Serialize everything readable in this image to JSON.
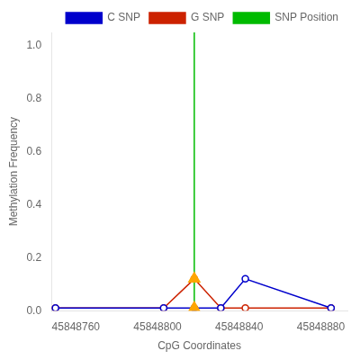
{
  "chart_data": {
    "type": "line",
    "xlabel": "CpG Coordinates",
    "ylabel": "Methylation Frequency",
    "xlim": [
      45848748,
      45848893
    ],
    "ylim": [
      0.0,
      1.05
    ],
    "xticks": [
      45848760,
      45848800,
      45848840,
      45848880
    ],
    "yticks": [
      {
        "value": 0.0,
        "label": "0.0"
      },
      {
        "value": 0.2,
        "label": "0.2"
      },
      {
        "value": 0.4,
        "label": "0.4"
      },
      {
        "value": 0.6,
        "label": "0.6"
      },
      {
        "value": 0.8,
        "label": "0.8"
      },
      {
        "value": 1.0,
        "label": "1.0"
      }
    ],
    "grid": false,
    "legend": "upper right",
    "series": [
      {
        "name": "C SNP",
        "type": "line",
        "color": "#0000cc",
        "marker": "circle",
        "x": [
          45848750,
          45848803,
          45848818,
          45848831,
          45848843,
          45848885
        ],
        "values": [
          0.01,
          0.01,
          0.01,
          0.01,
          0.12,
          0.01
        ]
      },
      {
        "name": "G SNP",
        "type": "line",
        "color": "#cc2200",
        "marker": "circle",
        "x": [
          45848750,
          45848803,
          45848818,
          45848831,
          45848843,
          45848885
        ],
        "values": [
          0.01,
          0.01,
          0.12,
          0.01,
          0.01,
          0.01
        ]
      },
      {
        "name": "SNP Position",
        "type": "vline",
        "color": "#00bb00",
        "x": [
          45848818
        ]
      },
      {
        "type": "scatter",
        "color": "#FFA500",
        "marker": "triangle",
        "x": [
          45848818,
          45848818
        ],
        "values": [
          0.01,
          0.12
        ]
      }
    ]
  }
}
